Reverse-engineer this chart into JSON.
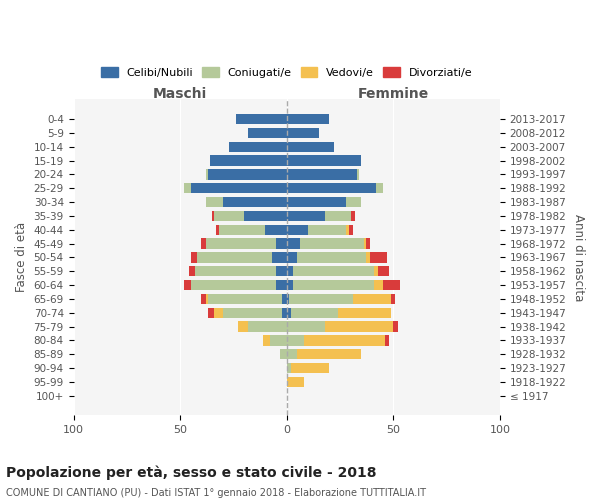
{
  "age_groups": [
    "100+",
    "95-99",
    "90-94",
    "85-89",
    "80-84",
    "75-79",
    "70-74",
    "65-69",
    "60-64",
    "55-59",
    "50-54",
    "45-49",
    "40-44",
    "35-39",
    "30-34",
    "25-29",
    "20-24",
    "15-19",
    "10-14",
    "5-9",
    "0-4"
  ],
  "birth_years": [
    "≤ 1917",
    "1918-1922",
    "1923-1927",
    "1928-1932",
    "1933-1937",
    "1938-1942",
    "1943-1947",
    "1948-1952",
    "1953-1957",
    "1958-1962",
    "1963-1967",
    "1968-1972",
    "1973-1977",
    "1978-1982",
    "1983-1987",
    "1988-1992",
    "1993-1997",
    "1998-2002",
    "2003-2007",
    "2008-2012",
    "2013-2017"
  ],
  "males": {
    "celibi": [
      0,
      0,
      0,
      0,
      0,
      0,
      2,
      2,
      5,
      5,
      7,
      5,
      10,
      20,
      30,
      45,
      37,
      36,
      27,
      18,
      24
    ],
    "coniugati": [
      0,
      0,
      0,
      3,
      8,
      18,
      28,
      35,
      40,
      38,
      35,
      33,
      22,
      14,
      8,
      3,
      1,
      0,
      0,
      0,
      0
    ],
    "vedovi": [
      0,
      0,
      0,
      0,
      3,
      5,
      4,
      1,
      0,
      0,
      0,
      0,
      0,
      0,
      0,
      0,
      0,
      0,
      0,
      0,
      0
    ],
    "divorziati": [
      0,
      0,
      0,
      0,
      0,
      0,
      3,
      2,
      3,
      3,
      3,
      2,
      1,
      1,
      0,
      0,
      0,
      0,
      0,
      0,
      0
    ]
  },
  "females": {
    "nubili": [
      0,
      0,
      0,
      0,
      0,
      0,
      2,
      1,
      3,
      3,
      5,
      6,
      10,
      18,
      28,
      42,
      33,
      35,
      22,
      15,
      20
    ],
    "coniugate": [
      0,
      0,
      2,
      5,
      8,
      18,
      22,
      30,
      38,
      38,
      32,
      30,
      18,
      12,
      7,
      3,
      1,
      0,
      0,
      0,
      0
    ],
    "vedove": [
      0,
      8,
      18,
      30,
      38,
      32,
      25,
      18,
      4,
      2,
      2,
      1,
      1,
      0,
      0,
      0,
      0,
      0,
      0,
      0,
      0
    ],
    "divorziate": [
      0,
      0,
      0,
      0,
      2,
      2,
      0,
      2,
      8,
      5,
      8,
      2,
      2,
      2,
      0,
      0,
      0,
      0,
      0,
      0,
      0
    ]
  },
  "colors": {
    "celibi": "#3a6ea5",
    "coniugati": "#b5c99a",
    "vedovi": "#f4c050",
    "divorziati": "#d93b3b"
  },
  "title": "Popolazione per età, sesso e stato civile - 2018",
  "subtitle": "COMUNE DI CANTIANO (PU) - Dati ISTAT 1° gennaio 2018 - Elaborazione TUTTITALIA.IT",
  "xlabel_left": "Maschi",
  "xlabel_right": "Femmine",
  "ylabel_left": "Fasce di età",
  "ylabel_right": "Anni di nascita",
  "xlim": 100,
  "legend_labels": [
    "Celibi/Nubili",
    "Coniugati/e",
    "Vedovi/e",
    "Divorziati/e"
  ],
  "background_color": "#f5f5f5"
}
